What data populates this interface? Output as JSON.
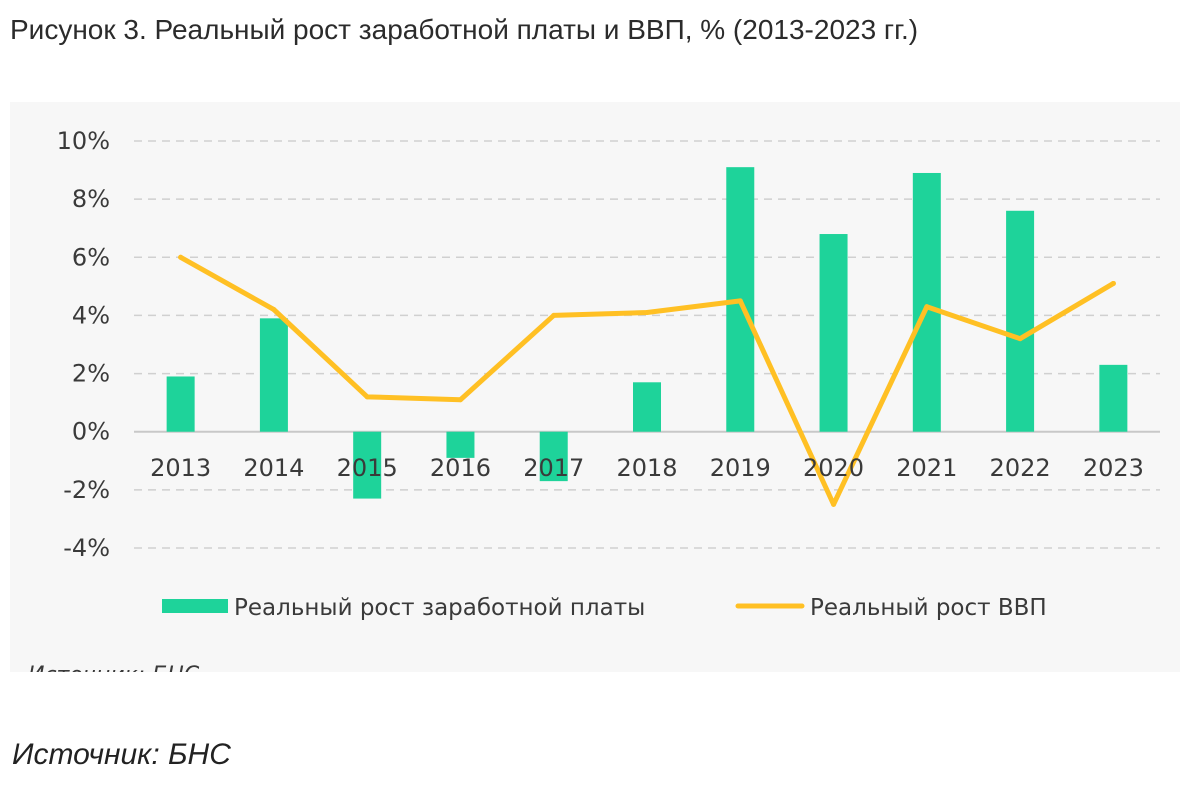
{
  "caption": "Рисунок 3. Реальный рост заработной платы и ВВП, % (2013-2023 гг.)",
  "source": "Источник: БНС",
  "chart_inner_source": "Источник: БНС",
  "colors": {
    "wage_bar": "#1ed39a",
    "gdp_line": "#ffc024",
    "grid": "#d0d0d0",
    "panel": "#f7f7f7"
  },
  "chart_data": {
    "type": "bar",
    "categories": [
      "2013",
      "2014",
      "2015",
      "2016",
      "2017",
      "2018",
      "2019",
      "2020",
      "2021",
      "2022",
      "2023"
    ],
    "series": [
      {
        "name": "Реальный рост заработной платы",
        "kind": "bar",
        "values": [
          1.9,
          3.9,
          -2.3,
          -0.9,
          -1.7,
          1.7,
          9.1,
          6.8,
          8.9,
          7.6,
          2.3
        ]
      },
      {
        "name": "Реальный рост ВВП",
        "kind": "line",
        "values": [
          6.0,
          4.2,
          1.2,
          1.1,
          4.0,
          4.1,
          4.5,
          -2.5,
          4.3,
          3.2,
          5.1
        ]
      }
    ],
    "y_ticks": [
      "10%",
      "8%",
      "6%",
      "4%",
      "2%",
      "0%",
      "-2%",
      "-4%"
    ],
    "ylim": [
      -4,
      10
    ],
    "grid": true,
    "legend_position": "bottom"
  }
}
